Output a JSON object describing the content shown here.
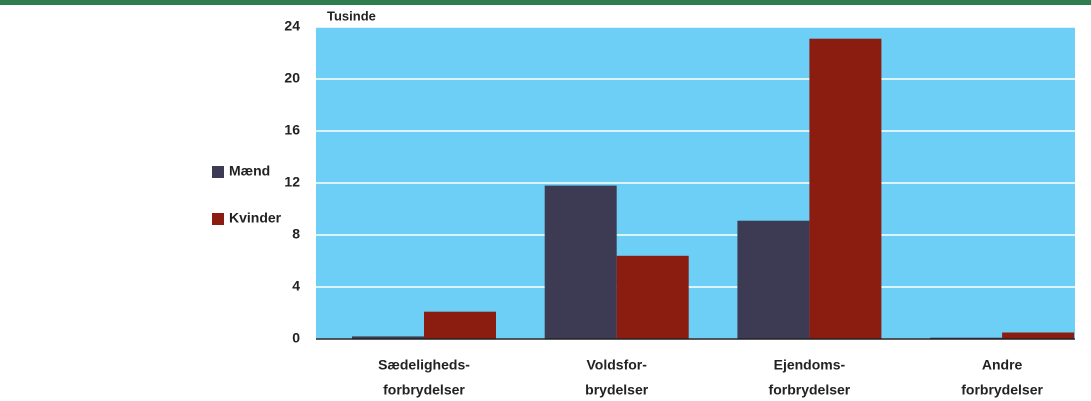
{
  "chart_data": {
    "type": "bar",
    "y_label": "Tusinde",
    "categories": [
      [
        "Sædeligheds-",
        "forbrydelser"
      ],
      [
        "Voldsfor-",
        "brydelser"
      ],
      [
        "Ejendoms-",
        "forbrydelser"
      ],
      [
        "Andre",
        "forbrydelser"
      ]
    ],
    "series": [
      {
        "name": "Mænd",
        "color": "#3d3b53",
        "values": [
          0.2,
          11.8,
          9.1,
          0.1
        ]
      },
      {
        "name": "Kvinder",
        "color": "#8b1c10",
        "values": [
          2.1,
          6.4,
          23.1,
          0.5
        ]
      }
    ],
    "ylim": [
      0,
      24
    ],
    "yticks": [
      0,
      4,
      8,
      12,
      16,
      20,
      24
    ],
    "grid": true,
    "legend": "left",
    "background": "#6dcff6"
  }
}
